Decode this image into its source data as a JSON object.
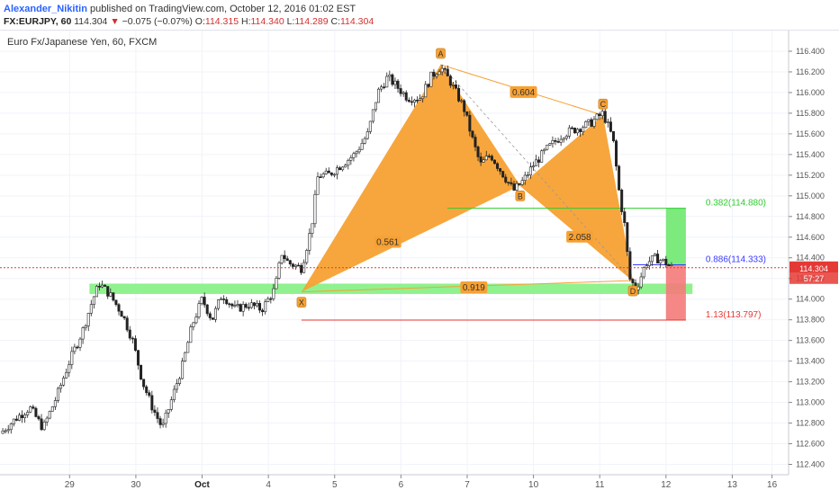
{
  "header": {
    "author": "Alexander_Nikitin",
    "published_text": " published on TradingView.com, October 12, 2016 01:02 EST",
    "symbol": "FX:EURJPY, 60",
    "last": "114.304",
    "change": "−0.075 (−0.07%)",
    "o_label": "O:",
    "o_value": "114.315",
    "h_label": "H:",
    "h_value": "114.340",
    "l_label": "L:",
    "l_value": "114.289",
    "c_label": "C:",
    "c_value": "114.304"
  },
  "chart_data": {
    "type": "candlestick",
    "title": "Euro Fx/Japanese Yen, 60, FXCM",
    "ylim": [
      112.3,
      116.6
    ],
    "y_ticks": [
      "116.400",
      "116.200",
      "116.000",
      "115.800",
      "115.600",
      "115.400",
      "115.200",
      "115.000",
      "114.800",
      "114.600",
      "114.400",
      "114.200",
      "114.000",
      "113.800",
      "113.600",
      "113.400",
      "113.200",
      "113.000",
      "112.800",
      "112.600",
      "112.400"
    ],
    "x_ticks": [
      {
        "label": "29",
        "x": 1.0
      },
      {
        "label": "30",
        "x": 2.0
      },
      {
        "label": "Oct",
        "x": 3.0
      },
      {
        "label": "4",
        "x": 4.0
      },
      {
        "label": "5",
        "x": 5.0
      },
      {
        "label": "6",
        "x": 6.0
      },
      {
        "label": "7",
        "x": 7.0
      },
      {
        "label": "10",
        "x": 8.0
      },
      {
        "label": "11",
        "x": 9.0
      },
      {
        "label": "12",
        "x": 10.0
      },
      {
        "label": "13",
        "x": 11.0
      },
      {
        "label": "16",
        "x": 11.6
      }
    ],
    "price_path": [
      [
        -0.05,
        112.7
      ],
      [
        0.2,
        112.85
      ],
      [
        0.4,
        112.95
      ],
      [
        0.6,
        112.75
      ],
      [
        0.8,
        113.05
      ],
      [
        1.0,
        113.4
      ],
      [
        1.2,
        113.7
      ],
      [
        1.35,
        114.0
      ],
      [
        1.45,
        114.15
      ],
      [
        1.6,
        114.05
      ],
      [
        1.8,
        113.85
      ],
      [
        1.95,
        113.6
      ],
      [
        2.1,
        113.2
      ],
      [
        2.25,
        112.95
      ],
      [
        2.4,
        112.75
      ],
      [
        2.55,
        113.05
      ],
      [
        2.7,
        113.35
      ],
      [
        2.85,
        113.75
      ],
      [
        3.0,
        114.0
      ],
      [
        3.15,
        113.8
      ],
      [
        3.3,
        114.05
      ],
      [
        3.5,
        113.9
      ],
      [
        3.7,
        113.95
      ],
      [
        3.9,
        113.9
      ],
      [
        4.1,
        114.1
      ],
      [
        4.2,
        114.45
      ],
      [
        4.3,
        114.35
      ],
      [
        4.5,
        114.3
      ],
      [
        4.65,
        114.7
      ],
      [
        4.75,
        115.2
      ],
      [
        4.9,
        115.2
      ],
      [
        5.1,
        115.3
      ],
      [
        5.3,
        115.4
      ],
      [
        5.5,
        115.6
      ],
      [
        5.65,
        116.0
      ],
      [
        5.8,
        116.15
      ],
      [
        5.95,
        116.05
      ],
      [
        6.1,
        115.95
      ],
      [
        6.3,
        115.95
      ],
      [
        6.45,
        116.15
      ],
      [
        6.6,
        116.25
      ],
      [
        6.75,
        116.1
      ],
      [
        6.95,
        115.85
      ],
      [
        7.1,
        115.5
      ],
      [
        7.2,
        115.3
      ],
      [
        7.35,
        115.4
      ],
      [
        7.55,
        115.2
      ],
      [
        7.7,
        115.05
      ],
      [
        7.85,
        115.15
      ],
      [
        8.0,
        115.3
      ],
      [
        8.2,
        115.45
      ],
      [
        8.45,
        115.6
      ],
      [
        8.65,
        115.65
      ],
      [
        8.85,
        115.7
      ],
      [
        9.05,
        115.8
      ],
      [
        9.2,
        115.55
      ],
      [
        9.3,
        115.0
      ],
      [
        9.38,
        114.7
      ],
      [
        9.45,
        114.2
      ],
      [
        9.55,
        114.1
      ],
      [
        9.7,
        114.35
      ],
      [
        9.85,
        114.4
      ],
      [
        10.0,
        114.35
      ],
      [
        10.1,
        114.3
      ]
    ],
    "pattern": {
      "points": [
        {
          "label": "X",
          "x": 4.5,
          "y": 114.07
        },
        {
          "label": "A",
          "x": 6.6,
          "y": 116.27
        },
        {
          "label": "B",
          "x": 7.8,
          "y": 115.1
        },
        {
          "label": "C",
          "x": 9.05,
          "y": 115.78
        },
        {
          "label": "D",
          "x": 9.5,
          "y": 114.18
        }
      ],
      "ratios": [
        {
          "label": "0.561",
          "x": 5.8,
          "y": 114.55
        },
        {
          "label": "0.604",
          "x": 7.85,
          "y": 116.0
        },
        {
          "label": "2.058",
          "x": 8.7,
          "y": 114.6
        },
        {
          "label": "0.919",
          "x": 7.1,
          "y": 114.11
        }
      ],
      "fill_color": "#f7a133"
    },
    "zones": {
      "support_zone": {
        "x0": 1.3,
        "x1": 10.4,
        "y0": 114.05,
        "y1": 114.15,
        "color": "#7bf07b"
      },
      "target_box": {
        "x0": 10.0,
        "x1": 10.3,
        "y0": 114.333,
        "y1": 114.88,
        "color": "#6ee86e"
      },
      "stop_box": {
        "x0": 10.0,
        "x1": 10.3,
        "y0": 113.797,
        "y1": 114.333,
        "color": "#f47a7a"
      }
    },
    "levels": [
      {
        "label": "0.382(114.880)",
        "value": 114.88,
        "color": "#2ecc2e",
        "x0": 6.7,
        "x1": 10.3
      },
      {
        "label": "0.886(114.333)",
        "value": 114.333,
        "color": "#3b3bff",
        "x0": 9.5,
        "x1": 10.3
      },
      {
        "label": "1.13(113.797)",
        "value": 113.797,
        "color": "#e53935",
        "x0": 4.5,
        "x1": 10.3
      }
    ],
    "last_price_line": {
      "value": 114.304,
      "color": "#e53935",
      "label": "114.304",
      "countdown": "57:27"
    }
  }
}
